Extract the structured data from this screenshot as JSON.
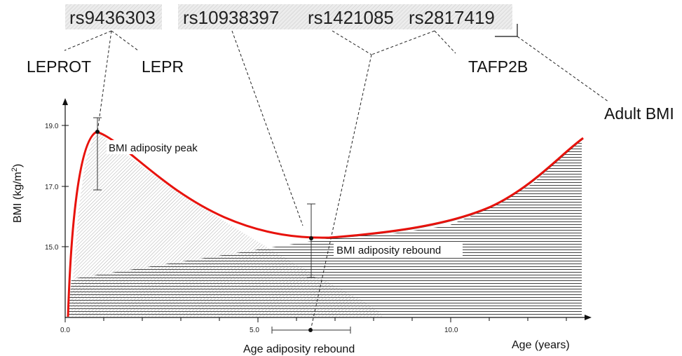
{
  "snps": {
    "group1": [
      "rs9436303"
    ],
    "group2": [
      "rs10938397",
      "rs1421085",
      "rs2817419"
    ]
  },
  "genes": [
    "LEPROT",
    "LEPR",
    "TAFP2B"
  ],
  "adult_bmi_label": "Adult BMI",
  "axes": {
    "y_label": "BMI (kg/m",
    "y_label_sup": "2",
    "y_label_close": ")",
    "x_label": "Age (years)",
    "y_ticks": [
      "19.0",
      "17.0",
      "15.0"
    ],
    "x_ticks": [
      "0.0",
      "5.0",
      "10.0"
    ]
  },
  "annotations": {
    "peak": "BMI adiposity peak",
    "rebound": "BMI adiposity rebound",
    "age_rebound": "Age adiposity rebound"
  },
  "colors": {
    "curve": "#e8120c",
    "text": "#111111",
    "snp_box": "#e6e6e6"
  }
}
